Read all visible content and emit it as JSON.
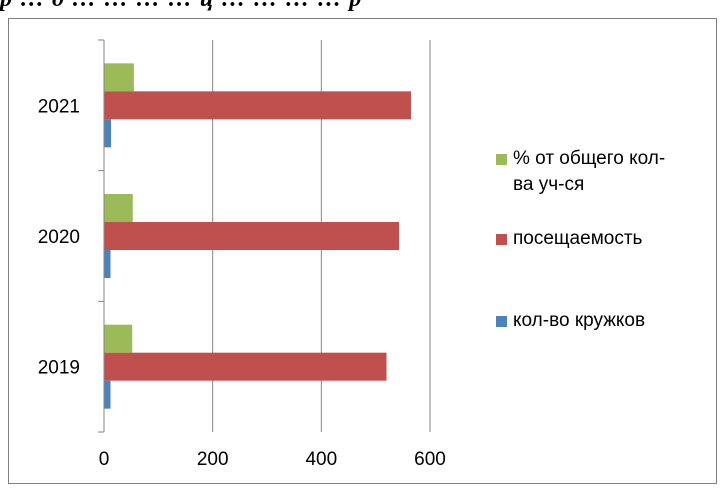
{
  "heading_fragment": "р … д … … … … ц … … … … р",
  "chart_data": {
    "type": "bar",
    "orientation": "horizontal",
    "categories": [
      "2019",
      "2020",
      "2021"
    ],
    "series": [
      {
        "name": "кол-во кружков",
        "color": "#4f81bd",
        "values": [
          12,
          12,
          13
        ]
      },
      {
        "name": "посещаемость",
        "color": "#c0504d",
        "values": [
          520,
          543,
          565
        ]
      },
      {
        "name": "% от общего кол-ва уч-ся",
        "color": "#9bbb59",
        "values": [
          52,
          53,
          55
        ]
      }
    ],
    "xlim": [
      0,
      600
    ],
    "xticks": [
      "0",
      "200",
      "400",
      "600"
    ],
    "grid": true,
    "legend_position": "right"
  },
  "legend": {
    "items": [
      {
        "label": "% от общего кол-\nва уч-ся",
        "color": "#9bbb59"
      },
      {
        "label": "посещаемость",
        "color": "#c0504d"
      },
      {
        "label": "кол-во кружков",
        "color": "#4f81bd"
      }
    ]
  }
}
